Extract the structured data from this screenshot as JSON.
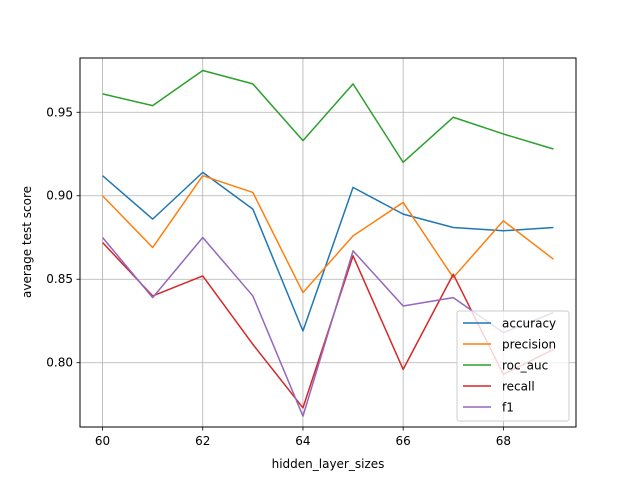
{
  "chart_data": {
    "type": "line",
    "xlabel": "hidden_layer_sizes",
    "ylabel": "average test score",
    "x": [
      60,
      61,
      62,
      63,
      64,
      65,
      66,
      67,
      68,
      69
    ],
    "xlim": [
      59.55,
      69.45
    ],
    "ylim": [
      0.7615,
      0.9825
    ],
    "xticks": [
      60,
      62,
      64,
      66,
      68
    ],
    "yticks": [
      0.8,
      0.85,
      0.9,
      0.95
    ],
    "ytick_labels": [
      "0.80",
      "0.85",
      "0.90",
      "0.95"
    ],
    "grid": true,
    "legend_position": "lower right",
    "series": [
      {
        "name": "accuracy",
        "color": "#1f77b4",
        "values": [
          0.912,
          0.886,
          0.914,
          0.892,
          0.819,
          0.905,
          0.889,
          0.881,
          0.879,
          0.881
        ]
      },
      {
        "name": "precision",
        "color": "#ff7f0e",
        "values": [
          0.9,
          0.869,
          0.912,
          0.902,
          0.842,
          0.876,
          0.896,
          0.851,
          0.885,
          0.862
        ]
      },
      {
        "name": "roc_auc",
        "color": "#2ca02c",
        "values": [
          0.961,
          0.954,
          0.975,
          0.967,
          0.933,
          0.967,
          0.92,
          0.947,
          0.937,
          0.928
        ]
      },
      {
        "name": "recall",
        "color": "#d62728",
        "values": [
          0.872,
          0.84,
          0.852,
          0.811,
          0.773,
          0.864,
          0.796,
          0.853,
          0.793,
          0.808
        ]
      },
      {
        "name": "f1",
        "color": "#9467bd",
        "values": [
          0.875,
          0.839,
          0.875,
          0.84,
          0.768,
          0.867,
          0.834,
          0.839,
          0.818,
          0.83
        ]
      }
    ]
  }
}
